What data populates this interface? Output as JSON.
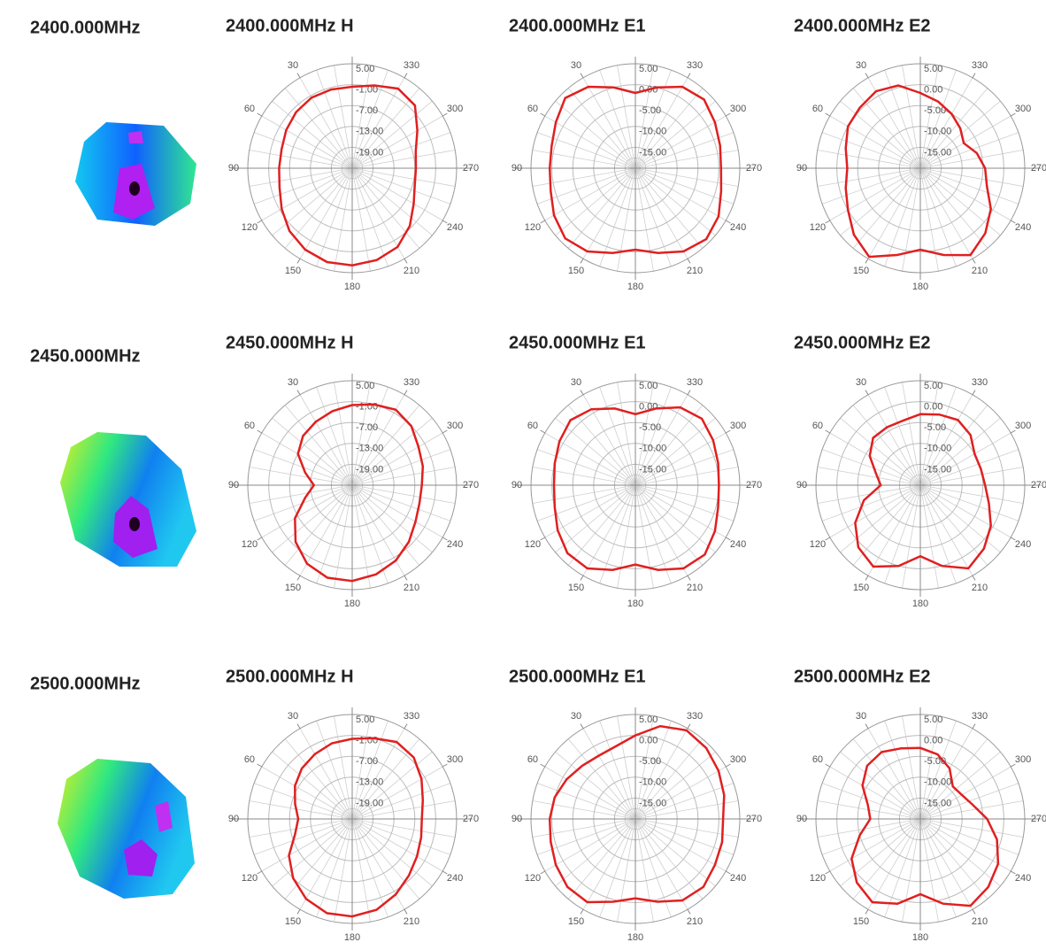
{
  "row_labels": [
    "2400.000MHz",
    "2450.000MHz",
    "2500.000MHz"
  ],
  "chart_data": [
    {
      "type": "polar",
      "title": "2400.000MHz  H",
      "color": "#e02020",
      "rlim": [
        -25,
        5
      ],
      "rticks": [
        {
          "value": 5,
          "label": "5.00"
        },
        {
          "value": -1,
          "label": "-1.00"
        },
        {
          "value": -7,
          "label": "-7.00"
        },
        {
          "value": -13,
          "label": "-13.00"
        },
        {
          "value": -19,
          "label": "-19.00"
        }
      ],
      "thetaticks": [
        30,
        60,
        90,
        120,
        150,
        180,
        210,
        240,
        270,
        300,
        330
      ],
      "theta": [
        0,
        15,
        30,
        45,
        60,
        75,
        90,
        105,
        120,
        135,
        150,
        165,
        180,
        195,
        210,
        225,
        240,
        255,
        270,
        285,
        300,
        315,
        330,
        345
      ],
      "values": [
        -1.6,
        -1.6,
        -1.6,
        -2.2,
        -3.1,
        -4.0,
        -4.0,
        -3.4,
        -1.6,
        0.5,
        2.0,
        2.9,
        2.9,
        2.3,
        1.1,
        -1.6,
        -4.6,
        -6.4,
        -6.7,
        -6.1,
        -3.4,
        0.5,
        1.4,
        -0.4
      ]
    },
    {
      "type": "polar",
      "title": "2400.000MHz  E1",
      "color": "#e02020",
      "rlim": [
        -20,
        5
      ],
      "rticks": [
        {
          "value": 5,
          "label": "5.00"
        },
        {
          "value": 0,
          "label": "0.00"
        },
        {
          "value": -5,
          "label": "-5.00"
        },
        {
          "value": -10,
          "label": "-10.00"
        },
        {
          "value": -15,
          "label": "-15.00"
        }
      ],
      "thetaticks": [
        30,
        60,
        90,
        120,
        150,
        180,
        210,
        240,
        270,
        300,
        330
      ],
      "theta": [
        0,
        15,
        30,
        45,
        60,
        75,
        90,
        105,
        120,
        135,
        150,
        165,
        180,
        195,
        210,
        225,
        240,
        255,
        270,
        285,
        300,
        315,
        330,
        345
      ],
      "values": [
        -2.0,
        0,
        2.5,
        3.75,
        2.0,
        0.75,
        0.5,
        1.0,
        2.5,
        3.75,
        3.0,
        1.0,
        -0.5,
        1.0,
        3.0,
        4.0,
        3.0,
        1.25,
        0.5,
        1.0,
        2.0,
        3.25,
        2.5,
        0
      ]
    },
    {
      "type": "polar",
      "title": "2400.000MHz  E2",
      "color": "#e02020",
      "rlim": [
        -20,
        5
      ],
      "rticks": [
        {
          "value": 5,
          "label": "5.00"
        },
        {
          "value": 0,
          "label": "0.00"
        },
        {
          "value": -5,
          "label": "-5.00"
        },
        {
          "value": -10,
          "label": "-10.00"
        },
        {
          "value": -15,
          "label": "-15.00"
        }
      ],
      "thetaticks": [
        30,
        60,
        90,
        120,
        150,
        180,
        210,
        240,
        270,
        300,
        330
      ],
      "theta": [
        0,
        15,
        30,
        45,
        60,
        75,
        90,
        105,
        120,
        135,
        150,
        165,
        180,
        195,
        210,
        225,
        240,
        255,
        270,
        285,
        300,
        315,
        330,
        345
      ],
      "values": [
        -2.0,
        0.5,
        1.25,
        0.5,
        0,
        -1.5,
        -2.5,
        -1.5,
        0,
        2.5,
        4.5,
        1.5,
        -0.5,
        1.5,
        4.0,
        2.0,
        -0.5,
        -3.5,
        -4.5,
        -6.0,
        -8.0,
        -6.5,
        -5.0,
        -3.5
      ]
    },
    {
      "type": "polar",
      "title": "2450.000MHz  H",
      "color": "#e02020",
      "rlim": [
        -25,
        5
      ],
      "rticks": [
        {
          "value": 5,
          "label": "5.00"
        },
        {
          "value": -1,
          "label": "-1.00"
        },
        {
          "value": -7,
          "label": "-7.00"
        },
        {
          "value": -13,
          "label": "-13.00"
        },
        {
          "value": -19,
          "label": "-19.00"
        }
      ],
      "thetaticks": [
        30,
        60,
        90,
        120,
        150,
        180,
        210,
        240,
        270,
        300,
        330
      ],
      "theta": [
        0,
        15,
        30,
        45,
        60,
        75,
        90,
        105,
        120,
        135,
        150,
        165,
        180,
        195,
        210,
        225,
        240,
        255,
        270,
        285,
        300,
        315,
        330,
        345
      ],
      "values": [
        -2,
        -3,
        -4,
        -5,
        -7,
        -11,
        -14,
        -11,
        -6,
        -2,
        1,
        2.5,
        2.5,
        1.5,
        0,
        -2,
        -4,
        -5,
        -5,
        -4,
        -3,
        -1,
        0,
        -1
      ]
    },
    {
      "type": "polar",
      "title": "2450.000MHz  E1",
      "color": "#e02020",
      "rlim": [
        -20,
        5
      ],
      "rticks": [
        {
          "value": 5,
          "label": "5.00"
        },
        {
          "value": 0,
          "label": "0.00"
        },
        {
          "value": -5,
          "label": "-5.00"
        },
        {
          "value": -10,
          "label": "-10.00"
        },
        {
          "value": -15,
          "label": "-15.00"
        }
      ],
      "thetaticks": [
        30,
        60,
        90,
        120,
        150,
        180,
        210,
        240,
        270,
        300,
        330
      ],
      "theta": [
        0,
        15,
        30,
        45,
        60,
        75,
        90,
        105,
        120,
        135,
        150,
        165,
        180,
        195,
        210,
        225,
        240,
        255,
        270,
        285,
        300,
        315,
        330,
        345
      ],
      "values": [
        -3,
        -1,
        1,
        2,
        1,
        0,
        -0.5,
        0,
        1.5,
        3,
        3,
        1,
        -1,
        1,
        3,
        3.5,
        2,
        0.5,
        0,
        0.5,
        1.5,
        2.5,
        1.5,
        -1
      ]
    },
    {
      "type": "polar",
      "title": "2450.000MHz  E2",
      "color": "#e02020",
      "rlim": [
        -20,
        5
      ],
      "rticks": [
        {
          "value": 5,
          "label": "5.00"
        },
        {
          "value": 0,
          "label": "0.00"
        },
        {
          "value": -5,
          "label": "-5.00"
        },
        {
          "value": -10,
          "label": "-10.00"
        },
        {
          "value": -15,
          "label": "-15.00"
        }
      ],
      "thetaticks": [
        30,
        60,
        90,
        120,
        150,
        180,
        210,
        240,
        270,
        300,
        330
      ],
      "theta": [
        0,
        15,
        30,
        45,
        60,
        75,
        90,
        105,
        120,
        135,
        150,
        165,
        180,
        195,
        210,
        225,
        240,
        255,
        270,
        285,
        300,
        315,
        330,
        345
      ],
      "values": [
        -3,
        -4,
        -4,
        -4,
        -6,
        -9,
        -10.5,
        -6,
        -2,
        1,
        2.5,
        0,
        -3,
        0,
        3,
        1.5,
        -0.5,
        -3,
        -4.5,
        -5,
        -5,
        -3,
        -2,
        -2.5
      ]
    },
    {
      "type": "polar",
      "title": "2500.000MHz  H",
      "color": "#e02020",
      "rlim": [
        -25,
        5
      ],
      "rticks": [
        {
          "value": 5,
          "label": "5.00"
        },
        {
          "value": -1,
          "label": "-1.00"
        },
        {
          "value": -7,
          "label": "-7.00"
        },
        {
          "value": -13,
          "label": "-13.00"
        },
        {
          "value": -19,
          "label": "-19.00"
        }
      ],
      "thetaticks": [
        30,
        60,
        90,
        120,
        150,
        180,
        210,
        240,
        270,
        300,
        330
      ],
      "theta": [
        0,
        15,
        30,
        45,
        60,
        75,
        90,
        105,
        120,
        135,
        150,
        165,
        180,
        195,
        210,
        225,
        240,
        255,
        270,
        285,
        300,
        315,
        330,
        345
      ],
      "values": [
        -2,
        -2.5,
        -3.5,
        -4.5,
        -6,
        -8,
        -9.5,
        -8,
        -4,
        -1,
        1.5,
        3,
        3,
        2,
        0,
        -2,
        -3.5,
        -4.5,
        -5,
        -4,
        -2,
        0,
        0.5,
        -1
      ]
    },
    {
      "type": "polar",
      "title": "2500.000MHz  E1",
      "color": "#e02020",
      "rlim": [
        -20,
        5
      ],
      "rticks": [
        {
          "value": 5,
          "label": "5.00"
        },
        {
          "value": 0,
          "label": "0.00"
        },
        {
          "value": -5,
          "label": "-5.00"
        },
        {
          "value": -10,
          "label": "-10.00"
        },
        {
          "value": -15,
          "label": "-15.00"
        }
      ],
      "thetaticks": [
        30,
        60,
        90,
        120,
        150,
        180,
        210,
        240,
        270,
        300,
        330
      ],
      "theta": [
        0,
        15,
        30,
        45,
        60,
        75,
        90,
        105,
        120,
        135,
        150,
        165,
        180,
        195,
        210,
        225,
        240,
        255,
        270,
        285,
        300,
        315,
        330,
        345
      ],
      "values": [
        0,
        -2,
        -2.5,
        -2,
        -1,
        0,
        0.5,
        1,
        2,
        3,
        3,
        0.5,
        -1,
        0.5,
        2.5,
        3,
        2,
        1.5,
        1,
        2,
        3,
        4,
        4.5,
        3
      ]
    },
    {
      "type": "polar",
      "title": "2500.000MHz  E2",
      "color": "#e02020",
      "rlim": [
        -20,
        5
      ],
      "rticks": [
        {
          "value": 5,
          "label": "5.00"
        },
        {
          "value": 0,
          "label": "0.00"
        },
        {
          "value": -5,
          "label": "-5.00"
        },
        {
          "value": -10,
          "label": "-10.00"
        },
        {
          "value": -15,
          "label": "-15.00"
        }
      ],
      "thetaticks": [
        30,
        60,
        90,
        120,
        150,
        180,
        210,
        240,
        270,
        300,
        330
      ],
      "theta": [
        0,
        15,
        30,
        45,
        60,
        75,
        90,
        105,
        120,
        135,
        150,
        165,
        180,
        195,
        210,
        225,
        240,
        255,
        270,
        285,
        300,
        315,
        330,
        345
      ],
      "values": [
        -3,
        -2.5,
        -1.5,
        -2,
        -4,
        -7,
        -8,
        -5,
        -1,
        1.5,
        3,
        1,
        -2,
        1,
        4,
        3,
        1.5,
        -1,
        -4,
        -7,
        -8.5,
        -9,
        -6,
        -4
      ]
    }
  ]
}
